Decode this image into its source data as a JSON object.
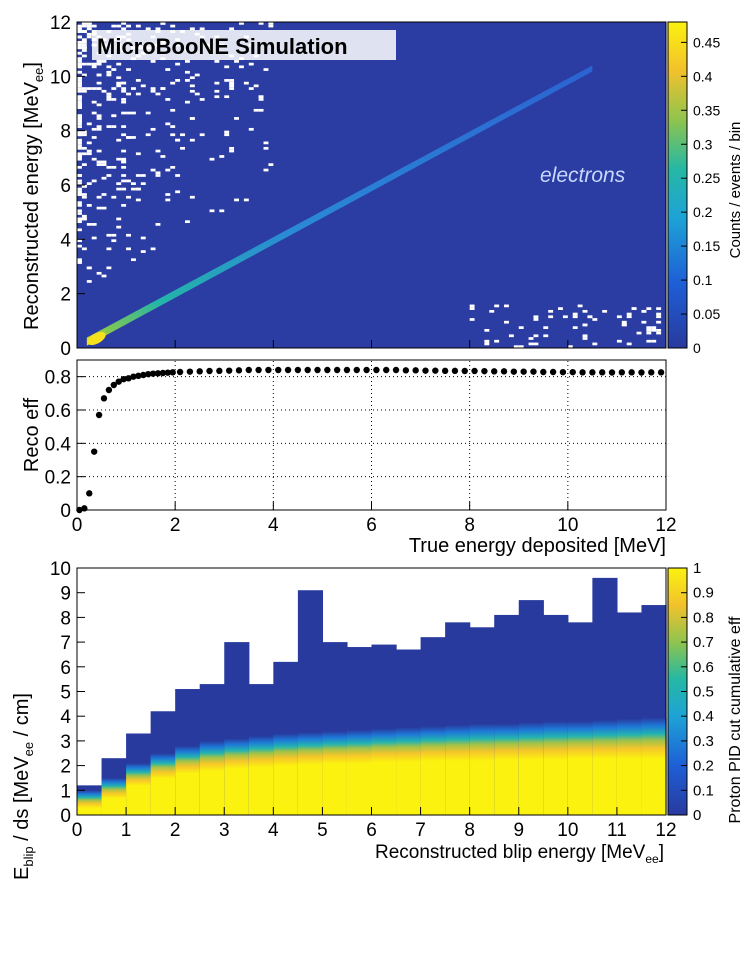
{
  "chart_data": [
    {
      "type": "heatmap",
      "panel": "top",
      "banner": "MicroBooNE Simulation",
      "annotation": "electrons",
      "xlim": [
        0,
        12
      ],
      "ylim": [
        0,
        12
      ],
      "ylabel_main": "Reconstructed energy",
      "ylabel_unit": "[MeV",
      "ylabel_sub": "ee",
      "ylabel_close": "]",
      "yticks": [
        "0",
        "2",
        "4",
        "6",
        "8",
        "10",
        "12"
      ],
      "colorbar": {
        "label": "Counts / events / bin",
        "range": [
          0,
          0.48
        ],
        "ticks": [
          "0",
          "0.05",
          "0.1",
          "0.15",
          "0.2",
          "0.25",
          "0.3",
          "0.35",
          "0.4",
          "0.45"
        ]
      },
      "diagonal_band": {
        "x_start": 0.2,
        "x_end": 10.5,
        "slope": 0.98
      }
    },
    {
      "type": "scatter",
      "panel": "middle",
      "ylabel": "Reco eff",
      "xlabel": "True energy deposited [MeV]",
      "xlim": [
        0,
        12
      ],
      "ylim": [
        0,
        0.9
      ],
      "xticks": [
        "0",
        "2",
        "4",
        "6",
        "8",
        "10",
        "12"
      ],
      "yticks": [
        "0",
        "0.2",
        "0.4",
        "0.6",
        "0.8"
      ],
      "x": [
        0.05,
        0.15,
        0.25,
        0.35,
        0.45,
        0.55,
        0.65,
        0.75,
        0.85,
        0.95,
        1.05,
        1.15,
        1.25,
        1.35,
        1.45,
        1.55,
        1.65,
        1.75,
        1.85,
        1.95,
        2.1,
        2.3,
        2.5,
        2.7,
        2.9,
        3.1,
        3.3,
        3.5,
        3.7,
        3.9,
        4.1,
        4.3,
        4.5,
        4.7,
        4.9,
        5.1,
        5.3,
        5.5,
        5.7,
        5.9,
        6.1,
        6.3,
        6.5,
        6.7,
        6.9,
        7.1,
        7.3,
        7.5,
        7.7,
        7.9,
        8.1,
        8.3,
        8.5,
        8.7,
        8.9,
        9.1,
        9.3,
        9.5,
        9.7,
        9.9,
        10.1,
        10.3,
        10.5,
        10.7,
        10.9,
        11.1,
        11.3,
        11.5,
        11.7,
        11.9
      ],
      "y": [
        0.0,
        0.01,
        0.1,
        0.35,
        0.57,
        0.67,
        0.72,
        0.75,
        0.77,
        0.785,
        0.79,
        0.8,
        0.805,
        0.81,
        0.815,
        0.818,
        0.82,
        0.822,
        0.824,
        0.826,
        0.828,
        0.83,
        0.832,
        0.834,
        0.835,
        0.836,
        0.838,
        0.84,
        0.84,
        0.84,
        0.84,
        0.84,
        0.84,
        0.84,
        0.84,
        0.84,
        0.84,
        0.84,
        0.84,
        0.84,
        0.84,
        0.84,
        0.84,
        0.838,
        0.838,
        0.836,
        0.836,
        0.835,
        0.835,
        0.834,
        0.834,
        0.833,
        0.832,
        0.832,
        0.83,
        0.83,
        0.83,
        0.828,
        0.828,
        0.827,
        0.827,
        0.826,
        0.826,
        0.826,
        0.825,
        0.826,
        0.826,
        0.825,
        0.826,
        0.826
      ]
    },
    {
      "type": "bar",
      "panel": "bottom",
      "title_main": "E",
      "title_sub": "blip",
      "title_rest": " / ds  [MeV",
      "title_sub2": "ee",
      "title_close": " / cm]",
      "xlabel_main": "Reconstructed blip energy",
      "xlabel_unit": "[MeV",
      "xlabel_sub": "ee",
      "xlabel_close": "]",
      "xlim": [
        0,
        12
      ],
      "ylim": [
        0,
        10
      ],
      "xticks": [
        "0",
        "1",
        "2",
        "3",
        "4",
        "5",
        "6",
        "7",
        "8",
        "9",
        "10",
        "11",
        "12"
      ],
      "yticks": [
        "0",
        "1",
        "2",
        "3",
        "4",
        "5",
        "6",
        "7",
        "8",
        "9",
        "10"
      ],
      "bin_width": 0.5,
      "categories": [
        "0-0.5",
        "0.5-1",
        "1-1.5",
        "1.5-2",
        "2-2.5",
        "2.5-3",
        "3-3.5",
        "3.5-4",
        "4-4.5",
        "4.5-5",
        "5-5.5",
        "5.5-6",
        "6-6.5",
        "6.5-7",
        "7-7.5",
        "7.5-8",
        "8-8.5",
        "8.5-9",
        "9-9.5",
        "9.5-10",
        "10-10.5",
        "10.5-11",
        "11-11.5",
        "11.5-12"
      ],
      "max_values": [
        1.2,
        2.3,
        3.3,
        4.2,
        5.1,
        5.3,
        7.0,
        5.3,
        6.2,
        9.1,
        7.0,
        6.8,
        6.9,
        6.7,
        7.2,
        7.8,
        7.6,
        8.1,
        8.7,
        8.1,
        7.8,
        9.6,
        8.2,
        8.5
      ],
      "full_eff_top": [
        0.3,
        0.7,
        1.2,
        1.5,
        1.7,
        1.8,
        1.9,
        1.95,
        2.0,
        2.05,
        2.1,
        2.1,
        2.15,
        2.15,
        2.2,
        2.2,
        2.2,
        2.25,
        2.25,
        2.25,
        2.3,
        2.3,
        2.3,
        2.3
      ],
      "transition_top": [
        1.0,
        1.5,
        2.1,
        2.5,
        2.8,
        3.0,
        3.1,
        3.2,
        3.3,
        3.35,
        3.4,
        3.45,
        3.5,
        3.55,
        3.6,
        3.65,
        3.7,
        3.7,
        3.75,
        3.8,
        3.8,
        3.85,
        3.9,
        3.95
      ],
      "colorbar": {
        "label": "Proton PID cut cumulative eff",
        "range": [
          0,
          1
        ],
        "ticks": [
          "0",
          "0.1",
          "0.2",
          "0.3",
          "0.4",
          "0.5",
          "0.6",
          "0.7",
          "0.8",
          "0.9",
          "1"
        ]
      }
    }
  ]
}
